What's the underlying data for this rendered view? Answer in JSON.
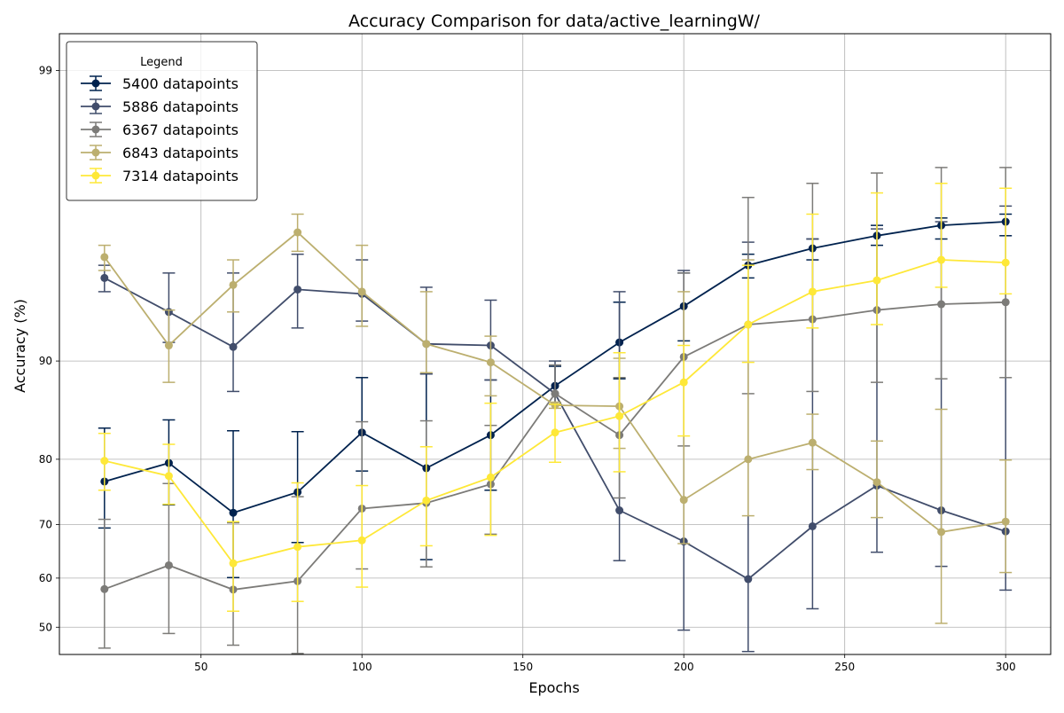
{
  "chart_data": {
    "type": "line",
    "title": "Accuracy Comparison for data/active_learningW/",
    "xlabel": "Epochs",
    "ylabel": "Accuracy (%)",
    "x": [
      20,
      40,
      60,
      80,
      100,
      120,
      140,
      160,
      180,
      200,
      220,
      240,
      260,
      280,
      300
    ],
    "x_ticks": [
      50,
      100,
      150,
      200,
      250,
      300
    ],
    "x_tick_labels": [
      "50",
      "100",
      "150",
      "200",
      "250",
      "300"
    ],
    "y_ticks": [
      50,
      60,
      70,
      80,
      90,
      99
    ],
    "y_tick_labels": [
      "50",
      "60",
      "70",
      "80",
      "90",
      "99"
    ],
    "y_scale": "logit (percent)",
    "xlim": [
      6,
      314
    ],
    "ylim": [
      44.4,
      99.26
    ],
    "grid": true,
    "legend": {
      "title": "Legend",
      "position": "upper-left"
    },
    "series": [
      {
        "name": "5400 datapoints",
        "color": "#00224e",
        "values": [
          76.9,
          79.5,
          72.0,
          75.3,
          83.3,
          78.8,
          83.0,
          88.0,
          91.3,
          93.4,
          95.2,
          95.8,
          96.2,
          96.5,
          96.6
        ],
        "err_low": [
          69.4,
          73.3,
          60.1,
          66.8,
          78.4,
          63.6,
          75.6,
          86.3,
          88.6,
          91.4,
          94.7,
          95.4,
          95.9,
          96.1,
          96.2
        ],
        "err_high": [
          83.8,
          84.7,
          83.5,
          83.4,
          88.7,
          89.0,
          88.5,
          89.6,
          93.6,
          94.9,
          95.6,
          96.1,
          96.5,
          96.7,
          96.8
        ]
      },
      {
        "name": "5886 datapoints",
        "color": "#414d6b",
        "values": [
          94.7,
          93.1,
          91.0,
          94.2,
          94.0,
          91.2,
          91.1,
          87.3,
          72.4,
          67.0,
          59.8,
          69.7,
          76.3,
          72.4,
          68.8
        ],
        "err_low": [
          94.1,
          91.3,
          87.5,
          92.2,
          92.6,
          89.0,
          88.5,
          86.3,
          63.4,
          49.4,
          45.0,
          53.8,
          65.0,
          62.3,
          57.6
        ],
        "err_high": [
          95.2,
          94.9,
          94.9,
          95.6,
          95.4,
          94.3,
          93.7,
          90.0,
          94.1,
          95.0,
          96.0,
          96.1,
          96.4,
          96.6,
          97.0
        ]
      },
      {
        "name": "6367 datapoints",
        "color": "#7c7b78",
        "values": [
          57.8,
          62.5,
          57.7,
          59.4,
          72.7,
          73.6,
          76.5,
          87.3,
          83.0,
          90.3,
          92.4,
          92.7,
          93.2,
          93.5,
          93.6
        ],
        "err_low": [
          45.7,
          48.7,
          46.3,
          44.6,
          61.8,
          62.2,
          68.3,
          86.3,
          74.4,
          81.7,
          87.3,
          87.5,
          88.3,
          88.6,
          88.7
        ],
        "err_high": [
          70.9,
          76.6,
          70.3,
          74.6,
          84.5,
          84.6,
          84.1,
          89.7,
          88.7,
          94.9,
          97.2,
          97.5,
          97.7,
          97.8,
          97.8
        ]
      },
      {
        "name": "6843 datapoints",
        "color": "#bcaf6f",
        "values": [
          95.5,
          91.1,
          94.4,
          96.3,
          94.1,
          91.2,
          89.9,
          86.2,
          86.1,
          74.1,
          80.0,
          82.1,
          76.8,
          68.7,
          70.5
        ],
        "err_low": [
          95.0,
          88.3,
          93.1,
          95.7,
          92.3,
          89.1,
          87.1,
          85.9,
          81.4,
          66.6,
          71.5,
          78.6,
          71.2,
          50.8,
          61.1
        ],
        "err_high": [
          95.9,
          93.2,
          95.4,
          96.8,
          95.9,
          94.1,
          91.7,
          86.5,
          90.2,
          94.1,
          95.4,
          85.3,
          82.3,
          85.8,
          79.9
        ]
      },
      {
        "name": "7314 datapoints",
        "color": "#fee838",
        "values": [
          79.8,
          77.7,
          62.9,
          66.0,
          67.2,
          74.0,
          77.5,
          83.3,
          85.1,
          88.3,
          92.4,
          94.1,
          94.6,
          95.4,
          95.3
        ],
        "err_low": [
          75.6,
          73.4,
          53.3,
          55.3,
          58.2,
          66.2,
          68.1,
          79.6,
          78.3,
          82.9,
          89.9,
          92.2,
          92.4,
          94.3,
          94.0
        ],
        "err_high": [
          83.2,
          81.9,
          70.5,
          76.7,
          76.3,
          81.6,
          86.4,
          86.3,
          90.6,
          91.1,
          95.2,
          96.8,
          97.3,
          97.5,
          97.4
        ]
      }
    ]
  }
}
